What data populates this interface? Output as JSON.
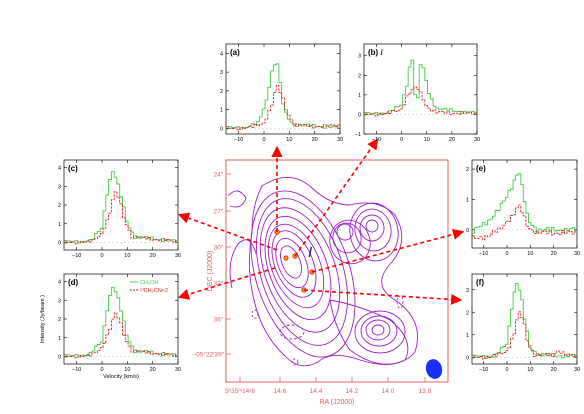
{
  "panels": [
    {
      "id": "a",
      "label": "(a)",
      "yticks": [
        "0",
        "1",
        "2",
        "3",
        "4"
      ],
      "ymin": -0.3,
      "ymax": 4.5,
      "xticks": [
        "−10",
        "0",
        "10",
        "20",
        "30"
      ]
    },
    {
      "id": "b",
      "label": "(b)",
      "label_italic": "I",
      "yticks": [
        "−1",
        "0",
        "1",
        "2",
        "3"
      ],
      "ymin": -1,
      "ymax": 3.6,
      "xticks": [
        "−10",
        "0",
        "10",
        "20",
        "30"
      ]
    },
    {
      "id": "c",
      "label": "(c)",
      "yticks": [
        "0",
        "1",
        "2",
        "3",
        "4"
      ],
      "ymin": -0.4,
      "ymax": 4.4,
      "xticks": [
        "−10",
        "0",
        "10",
        "20",
        "30"
      ]
    },
    {
      "id": "d",
      "label": "(d)",
      "yticks": [
        "0",
        "1",
        "2",
        "3",
        "4"
      ],
      "ymin": -0.4,
      "ymax": 4.4,
      "xticks": [
        "−10",
        "0",
        "10",
        "20",
        "30"
      ],
      "ylabel": "Intensity (Jy/beam )",
      "xlabel": "Velocity (km/s)",
      "legend": [
        {
          "text": "CH₃OH",
          "color": "#44cc44"
        },
        {
          "text": "¹³CH₃CN×2",
          "color": "#dd2222"
        }
      ]
    },
    {
      "id": "e",
      "label": "(e)",
      "yticks": [
        "0",
        "1",
        "2"
      ],
      "ymin": -0.6,
      "ymax": 2.3,
      "xticks": [
        "−10",
        "0",
        "10",
        "20",
        "30"
      ]
    },
    {
      "id": "f",
      "label": "(f)",
      "yticks": [
        "0",
        "1",
        "2",
        "3"
      ],
      "ymin": -0.3,
      "ymax": 3.7,
      "xticks": [
        "−10",
        "0",
        "10",
        "20",
        "30"
      ]
    }
  ],
  "map": {
    "dec_label": "DEC (J2000)",
    "ra_label": "RA (J2000)",
    "dec_ticks": [
      "24″",
      "27″",
      "30″",
      "33″",
      "36″",
      "−05°22′39″"
    ],
    "ra_ticks": [
      "5ʰ35ᵐ14ˢ8",
      "14.6",
      "14.4",
      "14.2",
      "14.0",
      "13.8"
    ],
    "source_label": "I"
  },
  "colors": {
    "green": "#44cc44",
    "red": "#dd2222",
    "contour": "#a020c8",
    "axis": "#e06060",
    "beam": "#1530ff"
  }
}
